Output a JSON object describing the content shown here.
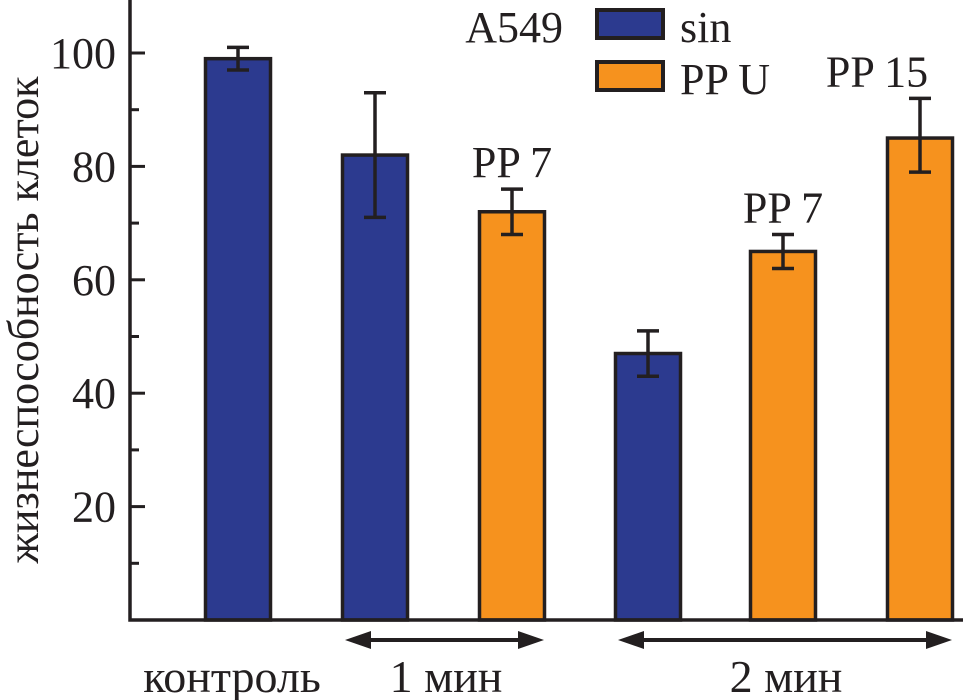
{
  "chart_data": {
    "type": "bar",
    "title": "",
    "ylabel": "жизнеспособность клеток",
    "cell_line_label": "A549",
    "legend": [
      {
        "name": "sin",
        "color": "#2c3a8f"
      },
      {
        "name": "PP U",
        "color": "#f6921e"
      }
    ],
    "legend_position": "top-right",
    "grid": false,
    "ylim": [
      0,
      109
    ],
    "yticks_major": [
      20,
      40,
      60,
      80,
      100
    ],
    "yticks_minor": [
      10,
      30,
      50,
      70,
      90
    ],
    "axis_color": "#231f20",
    "groups": [
      {
        "label": "контроль"
      },
      {
        "label": "1 мин"
      },
      {
        "label": "2 мин"
      }
    ],
    "bars": [
      {
        "group": "контроль",
        "series": "sin",
        "value": 99,
        "err_up": 2,
        "err_down": 2,
        "label": ""
      },
      {
        "group": "1 мин",
        "series": "sin",
        "value": 82,
        "err_up": 11,
        "err_down": 11,
        "label": ""
      },
      {
        "group": "1 мин",
        "series": "PP U",
        "value": 72,
        "err_up": 4,
        "err_down": 4,
        "label": "PP 7"
      },
      {
        "group": "2 мин",
        "series": "sin",
        "value": 47,
        "err_up": 4,
        "err_down": 4,
        "label": ""
      },
      {
        "group": "2 мин",
        "series": "PP U",
        "value": 65,
        "err_up": 3,
        "err_down": 3,
        "label": "PP 7"
      },
      {
        "group": "2 мин",
        "series": "PP U",
        "value": 85,
        "err_up": 7,
        "err_down": 6,
        "label": "PP 15"
      }
    ]
  }
}
